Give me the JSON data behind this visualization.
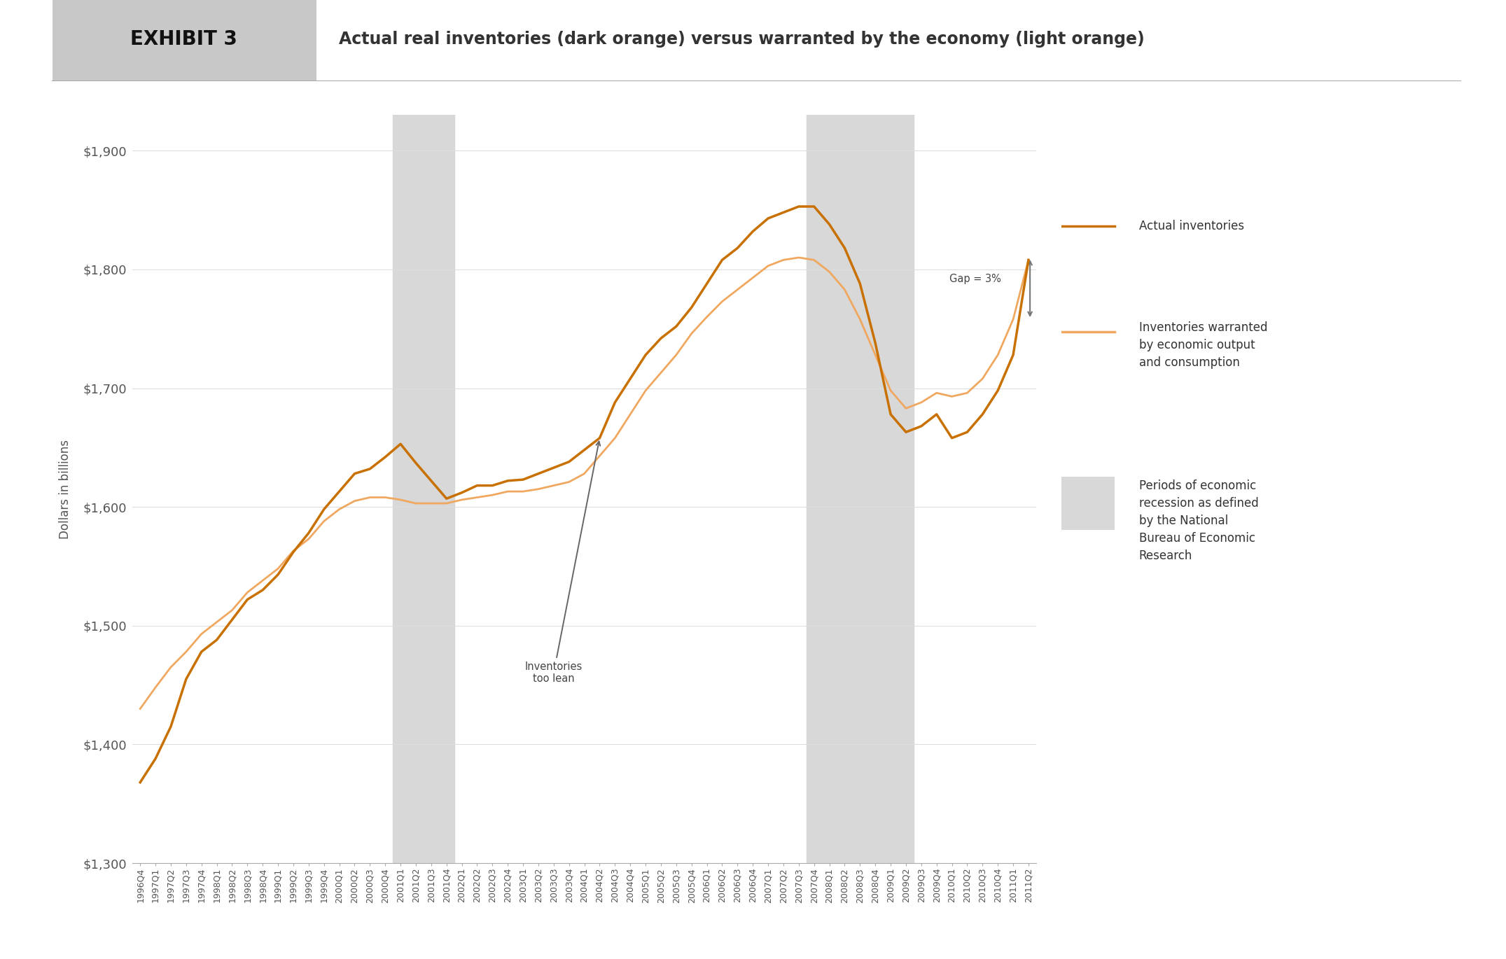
{
  "title_exhibit": "EXHIBIT 3",
  "title_main": "Actual real inventories (dark orange) versus warranted by the economy (light orange)",
  "ylabel": "Dollars in billions",
  "ylim": [
    1300,
    1930
  ],
  "yticks": [
    1300,
    1400,
    1500,
    1600,
    1700,
    1800,
    1900
  ],
  "background_color": "#ffffff",
  "actual_color": "#C87000",
  "warranted_color": "#F0A860",
  "recession_color": "#D8D8D8",
  "recession1": [
    "2001Q1",
    "2001Q4"
  ],
  "recession2": [
    "2007Q4",
    "2009Q2"
  ],
  "quarters": [
    "1996Q4",
    "1997Q1",
    "1997Q2",
    "1997Q3",
    "1997Q4",
    "1998Q1",
    "1998Q2",
    "1998Q3",
    "1998Q4",
    "1999Q1",
    "1999Q2",
    "1999Q3",
    "1999Q4",
    "2000Q1",
    "2000Q2",
    "2000Q3",
    "2000Q4",
    "2001Q1",
    "2001Q2",
    "2001Q3",
    "2001Q4",
    "2002Q1",
    "2002Q2",
    "2002Q3",
    "2002Q4",
    "2003Q1",
    "2003Q2",
    "2003Q3",
    "2003Q4",
    "2004Q1",
    "2004Q2",
    "2004Q3",
    "2004Q4",
    "2005Q1",
    "2005Q2",
    "2005Q3",
    "2005Q4",
    "2006Q1",
    "2006Q2",
    "2006Q3",
    "2006Q4",
    "2007Q1",
    "2007Q2",
    "2007Q3",
    "2007Q4",
    "2008Q1",
    "2008Q2",
    "2008Q3",
    "2008Q4",
    "2009Q1",
    "2009Q2",
    "2009Q3",
    "2009Q4",
    "2010Q1",
    "2010Q2",
    "2010Q3",
    "2010Q4",
    "2011Q1",
    "2011Q2"
  ],
  "actual": [
    1368,
    1388,
    1415,
    1455,
    1478,
    1488,
    1505,
    1522,
    1530,
    1543,
    1562,
    1578,
    1598,
    1613,
    1628,
    1632,
    1642,
    1653,
    1637,
    1622,
    1607,
    1612,
    1618,
    1618,
    1622,
    1623,
    1628,
    1633,
    1638,
    1648,
    1658,
    1688,
    1708,
    1728,
    1742,
    1752,
    1768,
    1788,
    1808,
    1818,
    1832,
    1843,
    1848,
    1853,
    1853,
    1838,
    1818,
    1788,
    1738,
    1678,
    1663,
    1668,
    1678,
    1658,
    1663,
    1678,
    1698,
    1728,
    1808
  ],
  "warranted": [
    1430,
    1448,
    1465,
    1478,
    1493,
    1503,
    1513,
    1528,
    1538,
    1548,
    1563,
    1573,
    1588,
    1598,
    1605,
    1608,
    1608,
    1606,
    1603,
    1603,
    1603,
    1606,
    1608,
    1610,
    1613,
    1613,
    1615,
    1618,
    1621,
    1628,
    1643,
    1658,
    1678,
    1698,
    1713,
    1728,
    1746,
    1760,
    1773,
    1783,
    1793,
    1803,
    1808,
    1810,
    1808,
    1798,
    1783,
    1758,
    1728,
    1698,
    1683,
    1688,
    1696,
    1693,
    1696,
    1708,
    1728,
    1758,
    1808
  ],
  "legend_actual": "Actual inventories",
  "legend_warranted": "Inventories warranted\nby economic output\nand consumption",
  "legend_recession": "Periods of economic\nrecession as defined\nby the National\nBureau of Economic\nResearch"
}
